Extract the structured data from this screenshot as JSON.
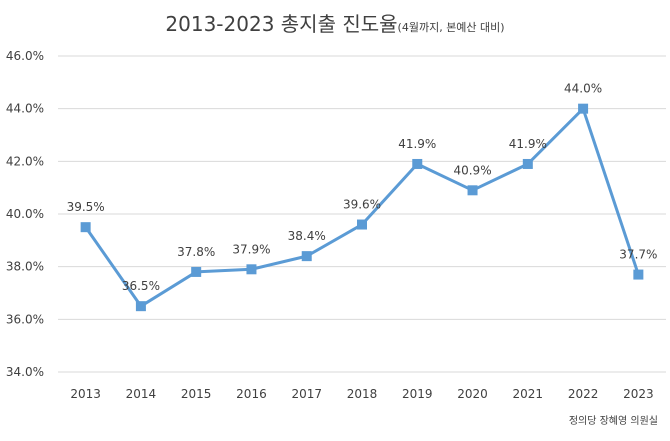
{
  "chart_data": {
    "type": "line",
    "title": "2013-2023 총지출 진도율",
    "subtitle": "(4월까지, 본예산 대비)",
    "xlabel": "",
    "ylabel": "",
    "categories": [
      "2013",
      "2014",
      "2015",
      "2016",
      "2017",
      "2018",
      "2019",
      "2020",
      "2021",
      "2022",
      "2023"
    ],
    "series": [
      {
        "values": [
          39.5,
          36.5,
          37.8,
          37.9,
          38.4,
          39.6,
          41.9,
          40.9,
          41.9,
          44.0,
          37.7
        ],
        "data_labels": [
          "39.5%",
          "36.5%",
          "37.8%",
          "37.9%",
          "38.4%",
          "39.6%",
          "41.9%",
          "40.9%",
          "41.9%",
          "44.0%",
          "37.7%"
        ]
      }
    ],
    "ylim": [
      34,
      46
    ],
    "yticks": [
      34,
      36,
      38,
      40,
      42,
      44,
      46
    ],
    "ytick_labels": [
      "34.0%",
      "36.0%",
      "38.0%",
      "40.0%",
      "42.0%",
      "44.0%",
      "46.0%"
    ],
    "grid": true,
    "legend": "none",
    "line_color": "#5B9BD5",
    "marker_color": "#5B9BD5",
    "marker": "square",
    "grid_color": "#D9D9D9",
    "source": "정의당 장혜영 의원실"
  }
}
